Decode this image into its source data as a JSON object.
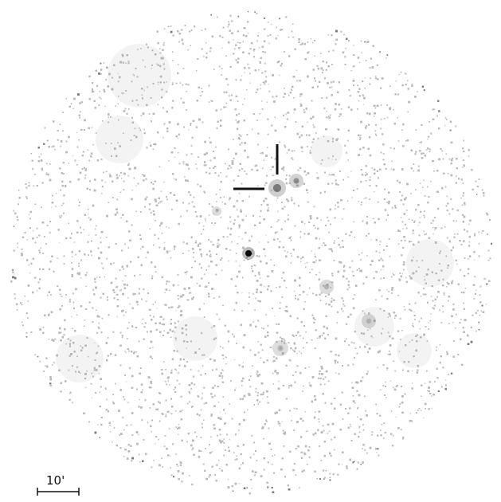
{
  "image": {
    "kind": "x-ray sky field",
    "background": "#ffffff",
    "dot_color": "#b9b9b9",
    "source_color": "#111111",
    "marker_color": "#111111"
  },
  "scale_bar": {
    "label": "10'"
  },
  "sources": [
    {
      "name": "marked-source",
      "brightness": 0.55
    },
    {
      "name": "companion-source",
      "brightness": 0.45
    },
    {
      "name": "bright-point-source",
      "brightness": 1.0
    },
    {
      "name": "faint-source",
      "brightness": 0.25
    },
    {
      "name": "faint-source",
      "brightness": 0.25
    },
    {
      "name": "faint-source",
      "brightness": 0.22
    },
    {
      "name": "faint-source",
      "brightness": 0.2
    }
  ]
}
